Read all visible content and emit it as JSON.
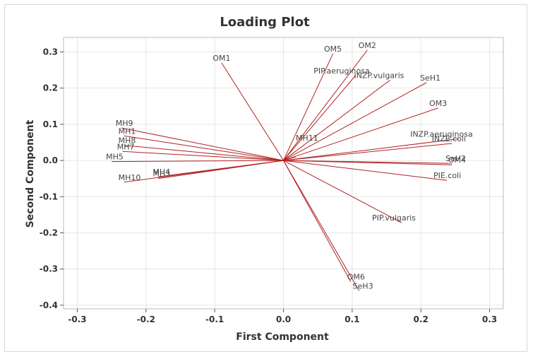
{
  "chart_data": {
    "type": "scatter",
    "title": "Loading Plot",
    "xlabel": "First Component",
    "ylabel": "Second Component",
    "xlim": [
      -0.32,
      0.32
    ],
    "ylim": [
      -0.41,
      0.34
    ],
    "xticks": [
      -0.3,
      -0.2,
      -0.1,
      0.0,
      0.1,
      0.2,
      0.3
    ],
    "yticks": [
      -0.4,
      -0.3,
      -0.2,
      -0.1,
      0.0,
      0.1,
      0.2,
      0.3
    ],
    "xtick_labels": [
      "-0.3",
      "-0.2",
      "-0.1",
      "0.0",
      "0.1",
      "0.2",
      "0.3"
    ],
    "ytick_labels": [
      "-0.4",
      "-0.3",
      "-0.2",
      "-0.1",
      "0.0",
      "0.1",
      "0.2",
      "0.3"
    ],
    "grid": true,
    "line_color": "#b22222",
    "loadings": [
      {
        "name": "OM1",
        "x": -0.09,
        "y": 0.27
      },
      {
        "name": "OM5",
        "x": 0.072,
        "y": 0.295
      },
      {
        "name": "OM2",
        "x": 0.122,
        "y": 0.305
      },
      {
        "name": "PIP.aeruginosa",
        "x": 0.105,
        "y": 0.235
      },
      {
        "name": "INZP.vulgaris",
        "x": 0.155,
        "y": 0.222
      },
      {
        "name": "SeH1",
        "x": 0.208,
        "y": 0.215
      },
      {
        "name": "OM3",
        "x": 0.225,
        "y": 0.145
      },
      {
        "name": "INZP.aeruginosa",
        "x": 0.255,
        "y": 0.06
      },
      {
        "name": "INZE.coli",
        "x": 0.245,
        "y": 0.047
      },
      {
        "name": "SeH2",
        "x": 0.245,
        "y": -0.008
      },
      {
        "name": "OM4",
        "x": 0.245,
        "y": -0.012
      },
      {
        "name": "PIE.coli",
        "x": 0.238,
        "y": -0.055
      },
      {
        "name": "PIP.vulgaris",
        "x": 0.172,
        "y": -0.172
      },
      {
        "name": "OM6",
        "x": 0.098,
        "y": -0.335
      },
      {
        "name": "SeH3",
        "x": 0.11,
        "y": -0.36
      },
      {
        "name": "MH11",
        "x": 0.018,
        "y": 0.01
      },
      {
        "name": "MH9",
        "x": -0.236,
        "y": 0.09
      },
      {
        "name": "MH1",
        "x": -0.232,
        "y": 0.068
      },
      {
        "name": "MH8",
        "x": -0.232,
        "y": 0.042
      },
      {
        "name": "MH7",
        "x": -0.234,
        "y": 0.025
      },
      {
        "name": "MH5",
        "x": -0.25,
        "y": -0.003
      },
      {
        "name": "MH10",
        "x": -0.232,
        "y": -0.06
      },
      {
        "name": "MH3",
        "x": -0.182,
        "y": -0.05
      },
      {
        "name": "MH4",
        "x": -0.182,
        "y": -0.045
      }
    ]
  }
}
